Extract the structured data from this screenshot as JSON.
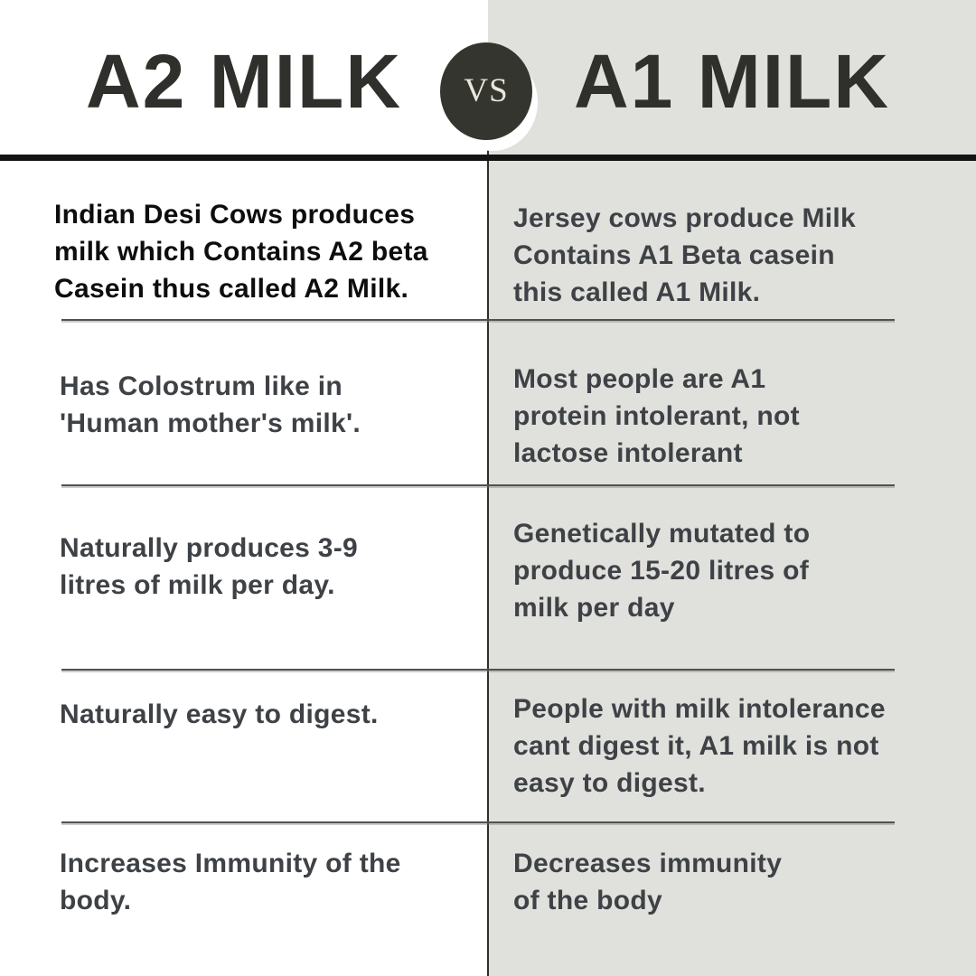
{
  "header": {
    "left_title": "A2 MILK",
    "right_title": "A1 MILK",
    "vs_label": "VS"
  },
  "colors": {
    "right_panel_bg": "#e0e0dc",
    "title_color": "#2f302c",
    "left_row1_text": "#0d0d0d",
    "body_text": "#3e4246",
    "divider": "#515151",
    "heavy_rule": "#141414",
    "vs_circle_bg": "#35352f",
    "vs_text": "#e9e6db",
    "center_line": "#2e2e2e"
  },
  "rows": [
    {
      "left": "Indian Desi Cows produces\nmilk which Contains A2 beta\nCasein thus called A2 Milk.",
      "right": "Jersey cows produce Milk\nContains A1 Beta casein\nthis called A1 Milk."
    },
    {
      "left": "Has Colostrum like in\n'Human mother's milk'.",
      "right": "Most people are A1\nprotein intolerant, not\nlactose intolerant"
    },
    {
      "left": "Naturally produces 3-9\nlitres of milk per day.",
      "right": "Genetically mutated to\nproduce 15-20 litres of\nmilk per day"
    },
    {
      "left": "Naturally easy to digest.",
      "right": "People with milk intolerance\ncant digest it, A1 milk is not\neasy to digest."
    },
    {
      "left": "Increases Immunity of the\nbody.",
      "right": "Decreases immunity\nof the body"
    }
  ]
}
